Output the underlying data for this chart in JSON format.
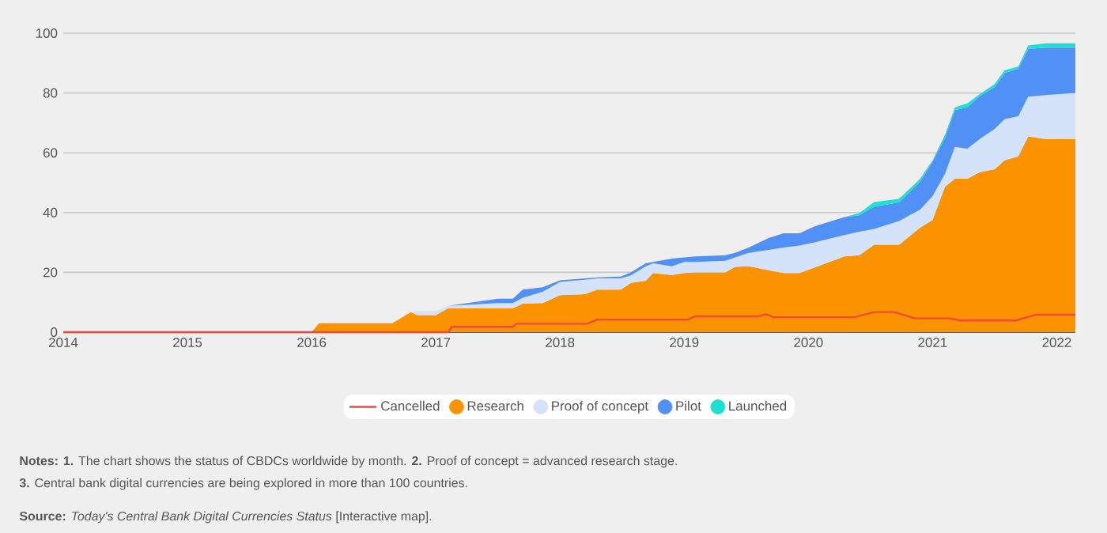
{
  "chart_data": {
    "type": "area",
    "stacked": true,
    "x": [
      2014,
      2016.0,
      2016.06,
      2016.65,
      2016.8,
      2016.85,
      2017.0,
      2017.1,
      2017.5,
      2017.62,
      2017.7,
      2017.86,
      2018.0,
      2018.2,
      2018.3,
      2018.49,
      2018.57,
      2018.69,
      2018.75,
      2018.9,
      2019.0,
      2019.09,
      2019.33,
      2019.41,
      2019.52,
      2019.68,
      2019.8,
      2019.93,
      2020.05,
      2020.29,
      2020.41,
      2020.53,
      2020.73,
      2020.9,
      2021.0,
      2021.1,
      2021.18,
      2021.28,
      2021.38,
      2021.5,
      2021.58,
      2021.69,
      2021.77,
      2021.91,
      2022.15
    ],
    "series": [
      {
        "name": "Cancelled",
        "type": "line",
        "color": "#f04a3a",
        "x": [
          2014,
          2017.1,
          2017.13,
          2017.62,
          2017.65,
          2018.22,
          2018.3,
          2019.03,
          2019.09,
          2019.6,
          2019.66,
          2019.72,
          2020.37,
          2020.53,
          2020.69,
          2020.86,
          2021.14,
          2021.22,
          2021.67,
          2021.83,
          2022.15
        ],
        "values": [
          0,
          0,
          1.8,
          1.8,
          2.8,
          2.8,
          4.2,
          4.2,
          5.3,
          5.3,
          6,
          5,
          5,
          6.7,
          6.7,
          4.6,
          4.6,
          3.9,
          3.9,
          5.8,
          5.8
        ]
      },
      {
        "name": "Research",
        "color": "#fb9300",
        "values": [
          0,
          0,
          3,
          3,
          6.7,
          5.7,
          5.7,
          8,
          8,
          8,
          9.5,
          9.7,
          12.4,
          12.7,
          14.2,
          14.2,
          16.5,
          17.2,
          19.8,
          19.1,
          19.8,
          20,
          20,
          21.8,
          22.1,
          20.7,
          19.8,
          19.8,
          21.6,
          25.3,
          25.7,
          29.2,
          29.2,
          35,
          37.5,
          48.7,
          51.3,
          51.3,
          53.5,
          54.5,
          57.5,
          58.8,
          65.5,
          64.6,
          64.6
        ]
      },
      {
        "name": "Proof of concept",
        "color": "#d4e2fa",
        "values": [
          0,
          0,
          0,
          0,
          0,
          1.3,
          1.3,
          0.8,
          1.7,
          1.7,
          2,
          3.8,
          4.4,
          4.8,
          3.8,
          3.8,
          2.5,
          4.8,
          3.2,
          2.9,
          3.7,
          3.5,
          3.9,
          3.2,
          4.4,
          6.8,
          8.5,
          9.2,
          8.4,
          7.2,
          7.9,
          5.3,
          8,
          6,
          8,
          4.3,
          10.7,
          10.1,
          11.1,
          13.5,
          13.7,
          13.4,
          13.3,
          14.7,
          15.4
        ]
      },
      {
        "name": "Pilot",
        "color": "#5190f5",
        "values": [
          0,
          0,
          0,
          0,
          0,
          0,
          0,
          0,
          1.5,
          1.5,
          2.7,
          1.5,
          0.5,
          0.5,
          0.3,
          0.6,
          1,
          1,
          0.5,
          2.6,
          1.5,
          1.8,
          1.8,
          1.5,
          1.8,
          4,
          4.8,
          4.1,
          5.4,
          6,
          5.5,
          7.5,
          6.2,
          9.4,
          11.5,
          12,
          12.3,
          13.8,
          14.4,
          14,
          15.5,
          15.9,
          15.9,
          15.9,
          15.2
        ]
      },
      {
        "name": "Launched",
        "color": "#1de0d0",
        "values": [
          0,
          0,
          0,
          0,
          0,
          0,
          0,
          0,
          0,
          0,
          0,
          0,
          0,
          0,
          0,
          0,
          0,
          0,
          0,
          0,
          0,
          0,
          0,
          0,
          0,
          0,
          0,
          0,
          0,
          0,
          0.7,
          1.5,
          1.2,
          0.9,
          0.5,
          1,
          0.9,
          1.3,
          0.6,
          1,
          0.9,
          0.7,
          1.2,
          1.4,
          1.4
        ]
      }
    ],
    "xlim": [
      2014,
      2022.15
    ],
    "xticks": [
      2014,
      2015,
      2016,
      2017,
      2018,
      2019,
      2020,
      2021,
      2022
    ],
    "ylim": [
      0,
      100
    ],
    "yticks": [
      0,
      20,
      40,
      60,
      80,
      100
    ],
    "grid": "y",
    "legend": "bottom",
    "annotations": [
      "**Notes: 1.** The chart shows the status of CBDCs worldwide by month. **2.** Proof of concept = advanced research stage.",
      "**3.** Central bank digital currencies are being explored in more than 100 countries.",
      "**Source:** *Today's Central Bank Digital Currencies Status* [Interactive map]."
    ]
  }
}
